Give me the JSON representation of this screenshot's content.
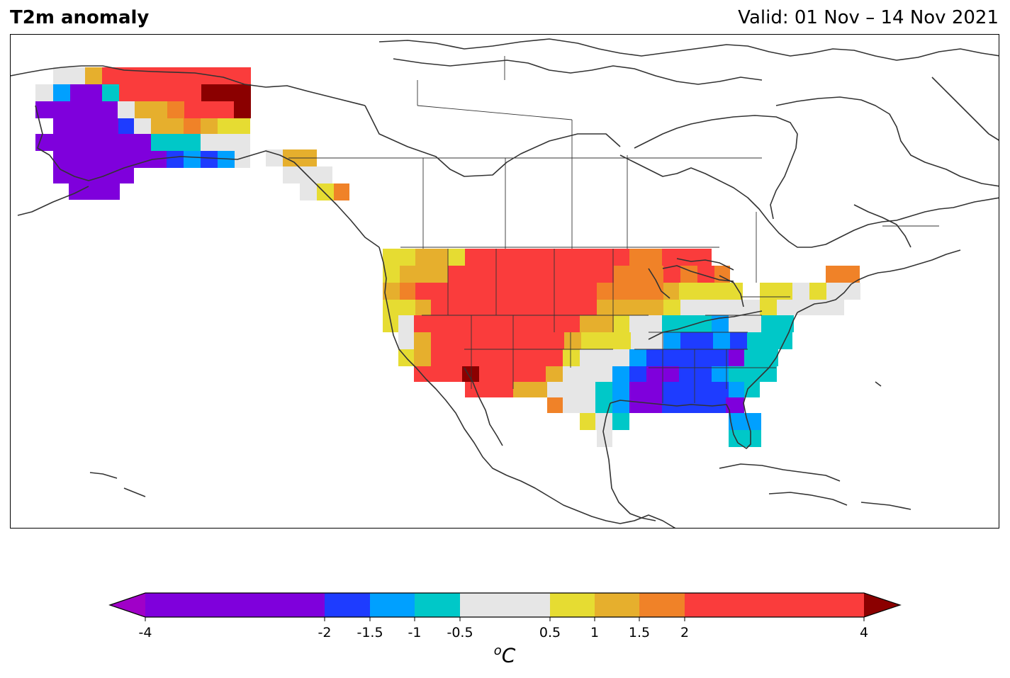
{
  "header": {
    "title": "T2m anomaly",
    "valid": "Valid: 01 Nov – 14 Nov 2021"
  },
  "colorbar": {
    "unit_base": "C",
    "unit_sup": "o",
    "ticks": [
      "-4",
      "-2",
      "-1.5",
      "-1",
      "-0.5",
      "0.5",
      "1",
      "1.5",
      "2",
      "4"
    ],
    "bins": [
      {
        "from": -4,
        "to": -2,
        "color": "#7f00dc"
      },
      {
        "from": -2,
        "to": -1.5,
        "color": "#1e3cff"
      },
      {
        "from": -1.5,
        "to": -1,
        "color": "#00a0ff"
      },
      {
        "from": -1,
        "to": -0.5,
        "color": "#00c8c8"
      },
      {
        "from": -0.5,
        "to": 0.5,
        "color": "#e6e6e6"
      },
      {
        "from": 0.5,
        "to": 1,
        "color": "#e6dc32"
      },
      {
        "from": 1,
        "to": 1.5,
        "color": "#e6af2d"
      },
      {
        "from": 1.5,
        "to": 2,
        "color": "#f08228"
      },
      {
        "from": 2,
        "to": 4,
        "color": "#fa3c3c"
      }
    ],
    "under_color": "#a000c8",
    "over_color": "#8b0000"
  }
}
